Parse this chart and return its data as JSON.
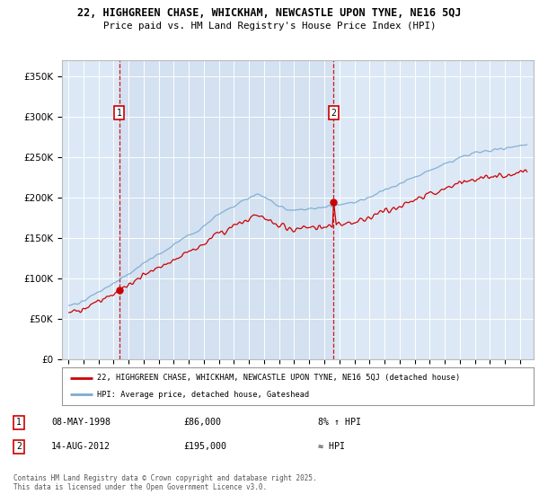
{
  "title_line1": "22, HIGHGREEN CHASE, WHICKHAM, NEWCASTLE UPON TYNE, NE16 5QJ",
  "title_line2": "Price paid vs. HM Land Registry's House Price Index (HPI)",
  "background_color": "#ffffff",
  "plot_bg_color": "#dce8f5",
  "sale1_year": 1998,
  "sale1_month": 5,
  "sale1_price": 86000,
  "sale2_year": 2012,
  "sale2_month": 8,
  "sale2_price": 195000,
  "legend_line1": "22, HIGHGREEN CHASE, WHICKHAM, NEWCASTLE UPON TYNE, NE16 5QJ (detached house)",
  "legend_line2": "HPI: Average price, detached house, Gateshead",
  "footnote": "Contains HM Land Registry data © Crown copyright and database right 2025.\nThis data is licensed under the Open Government Licence v3.0.",
  "table_row1": [
    "1",
    "08-MAY-1998",
    "£86,000",
    "8% ↑ HPI"
  ],
  "table_row2": [
    "2",
    "14-AUG-2012",
    "£195,000",
    "≈ HPI"
  ],
  "red_color": "#cc0000",
  "blue_color": "#7aaad0",
  "dashed_line_color": "#cc0000",
  "ylim": [
    0,
    370000
  ],
  "yticks": [
    0,
    50000,
    100000,
    150000,
    200000,
    250000,
    300000,
    350000
  ],
  "xstart": 1995,
  "xend": 2025,
  "seed": 15
}
